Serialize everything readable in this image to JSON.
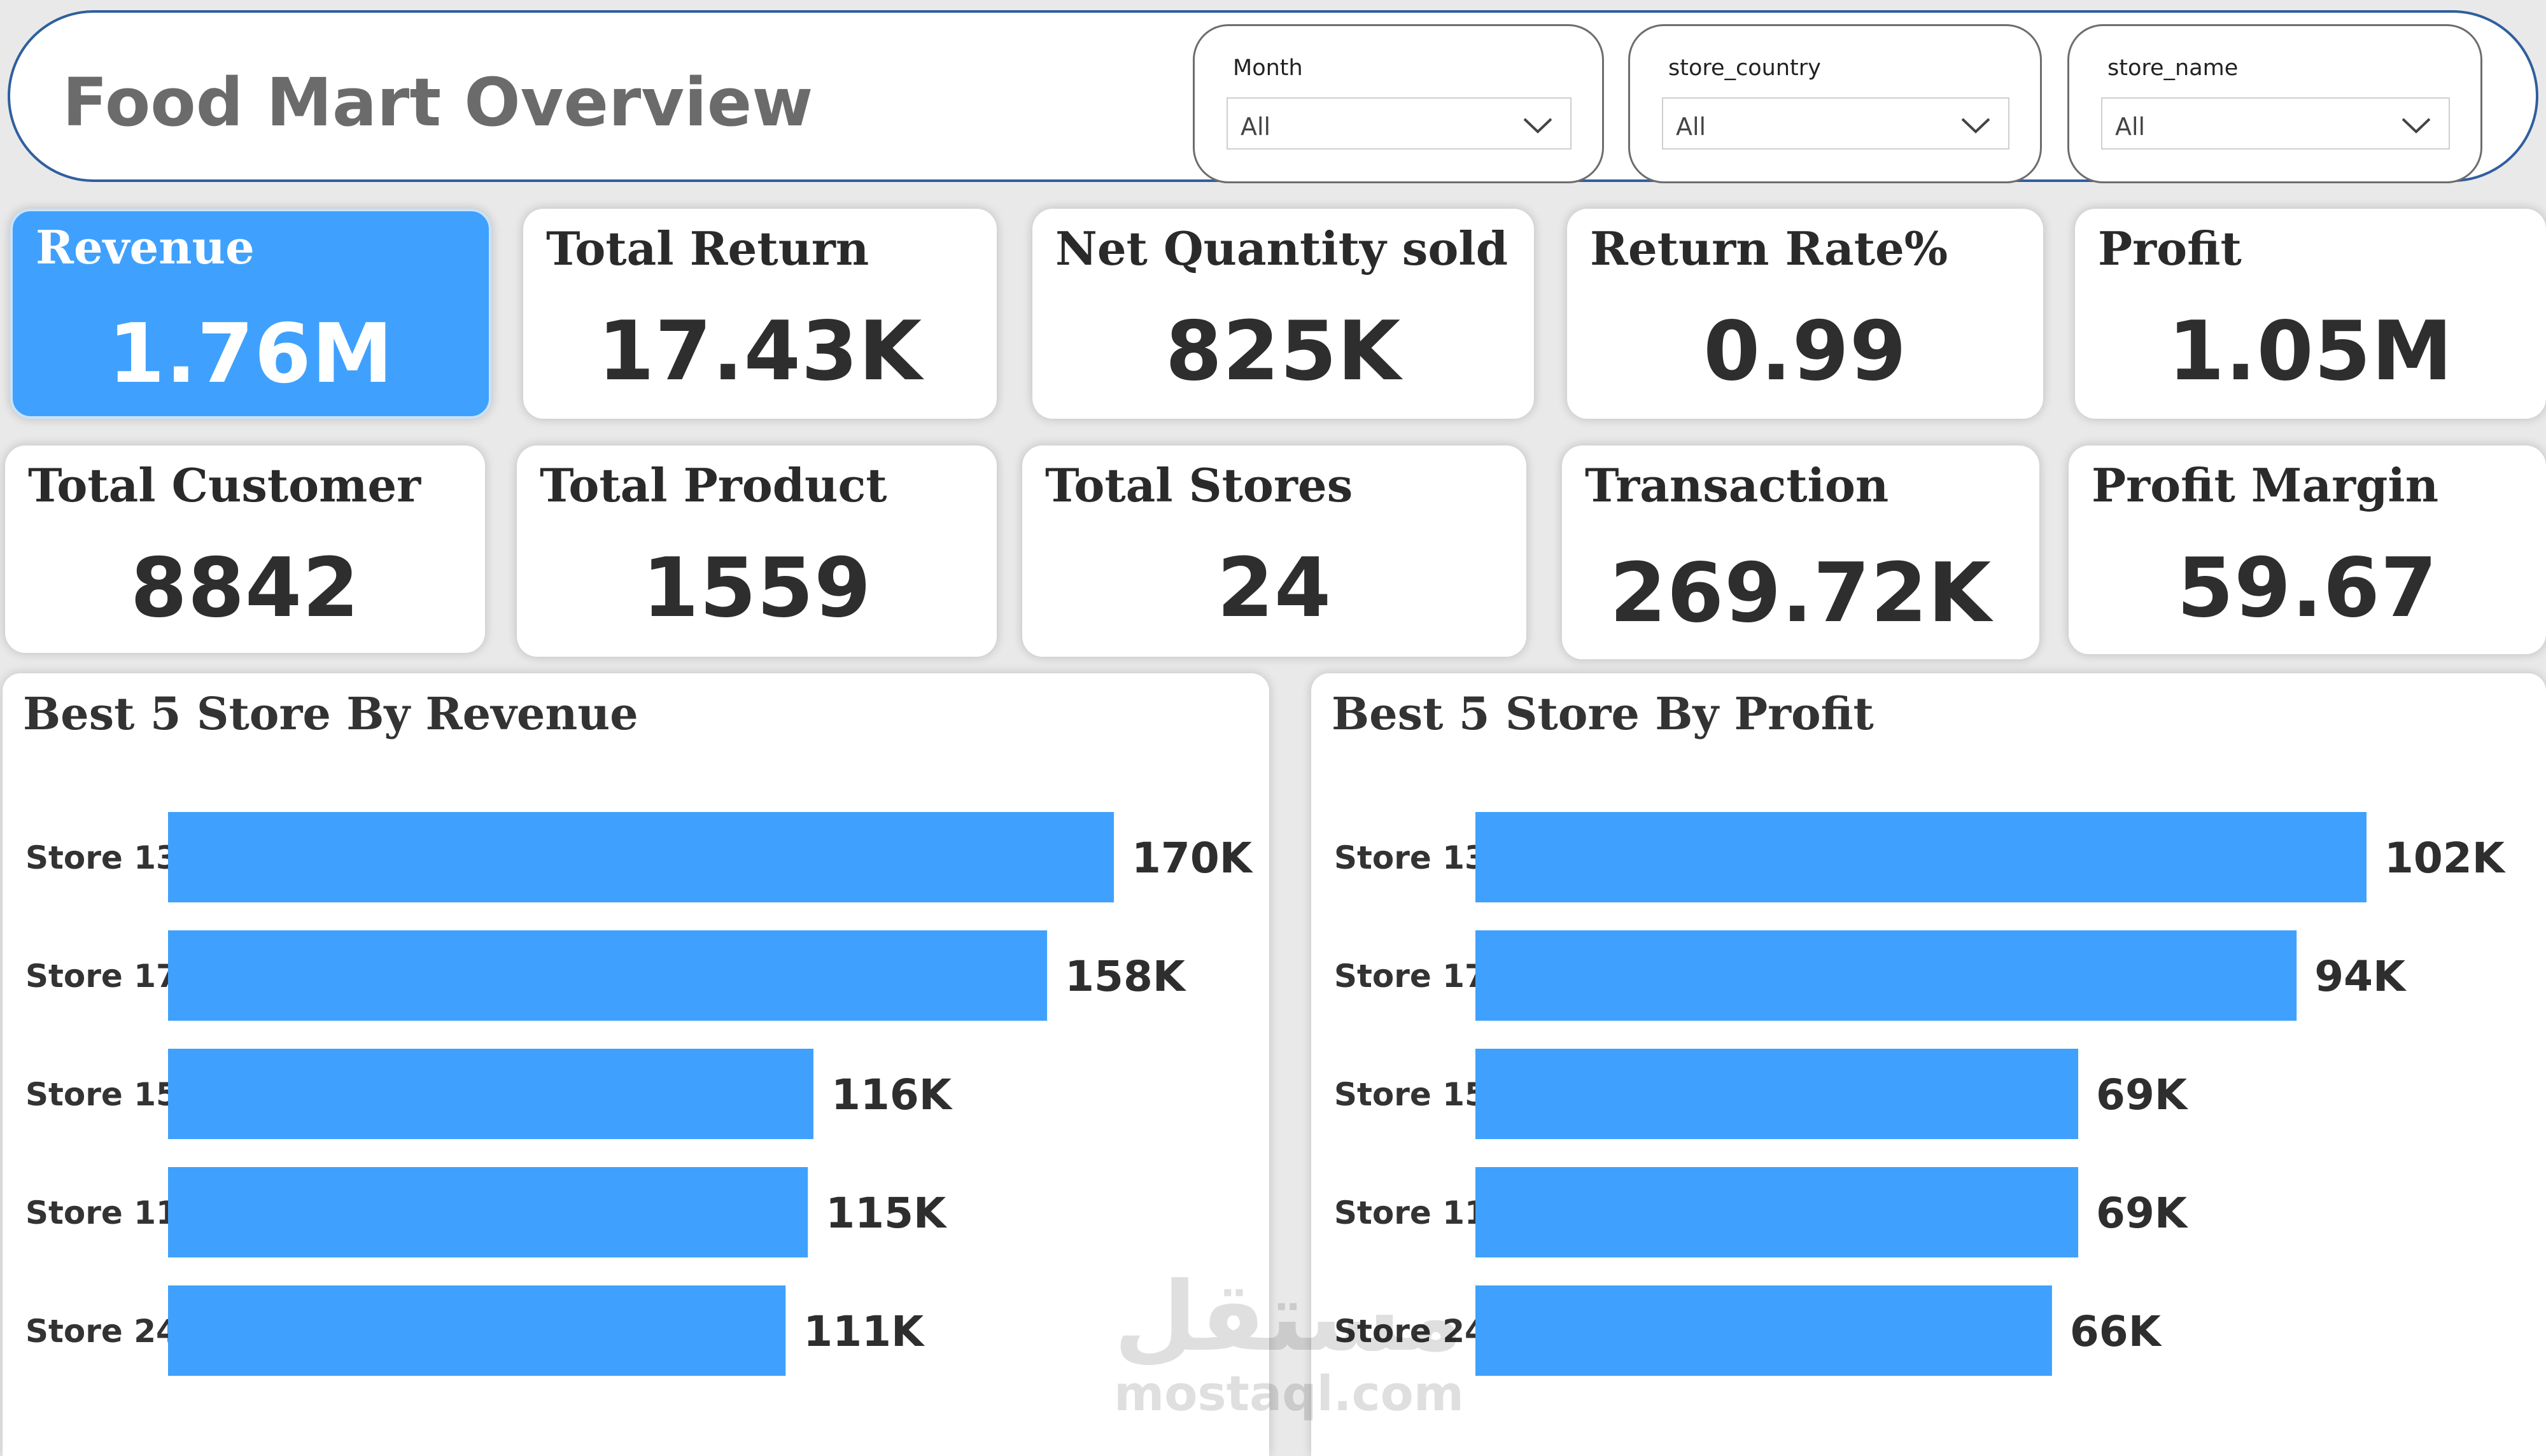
{
  "header": {
    "title": "Food Mart Overview"
  },
  "filters": [
    {
      "label": "Month",
      "value": "All"
    },
    {
      "label": "store_country",
      "value": "All"
    },
    {
      "label": "store_name",
      "value": "All"
    }
  ],
  "kpis": [
    {
      "title": "Revenue",
      "value": "1.76M"
    },
    {
      "title": "Total Return",
      "value": "17.43K"
    },
    {
      "title": "Net Quantity sold",
      "value": "825K"
    },
    {
      "title": "Return Rate%",
      "value": "0.99"
    },
    {
      "title": "Profit",
      "value": "1.05M"
    },
    {
      "title": "Total Customer",
      "value": "8842"
    },
    {
      "title": "Total Product",
      "value": "1559"
    },
    {
      "title": "Total Stores",
      "value": "24"
    },
    {
      "title": "Transaction",
      "value": "269.72K"
    },
    {
      "title": "Profit Margin",
      "value": "59.67"
    }
  ],
  "colors": {
    "accent": "#3fa1fd",
    "header_border": "#2f5f9e",
    "text": "#2e2e2e"
  },
  "watermark": {
    "arabic": "مستقل",
    "latin": "mostaql.com"
  },
  "chart_data": [
    {
      "type": "bar",
      "orientation": "horizontal",
      "title": "Best 5 Store By Revenue",
      "categories": [
        "Store 13",
        "Store 17",
        "Store 15",
        "Store 11",
        "Store 24"
      ],
      "values": [
        170,
        158,
        116,
        115,
        111
      ],
      "labels": [
        "170K",
        "158K",
        "116K",
        "115K",
        "111K"
      ],
      "unit": "K",
      "color": "#3fa1fd"
    },
    {
      "type": "bar",
      "orientation": "horizontal",
      "title": "Best 5 Store By Profit",
      "categories": [
        "Store 13",
        "Store 17",
        "Store 15",
        "Store 11",
        "Store 24"
      ],
      "values": [
        102,
        94,
        69,
        69,
        66
      ],
      "labels": [
        "102K",
        "94K",
        "69K",
        "69K",
        "66K"
      ],
      "unit": "K",
      "color": "#3fa1fd"
    }
  ]
}
